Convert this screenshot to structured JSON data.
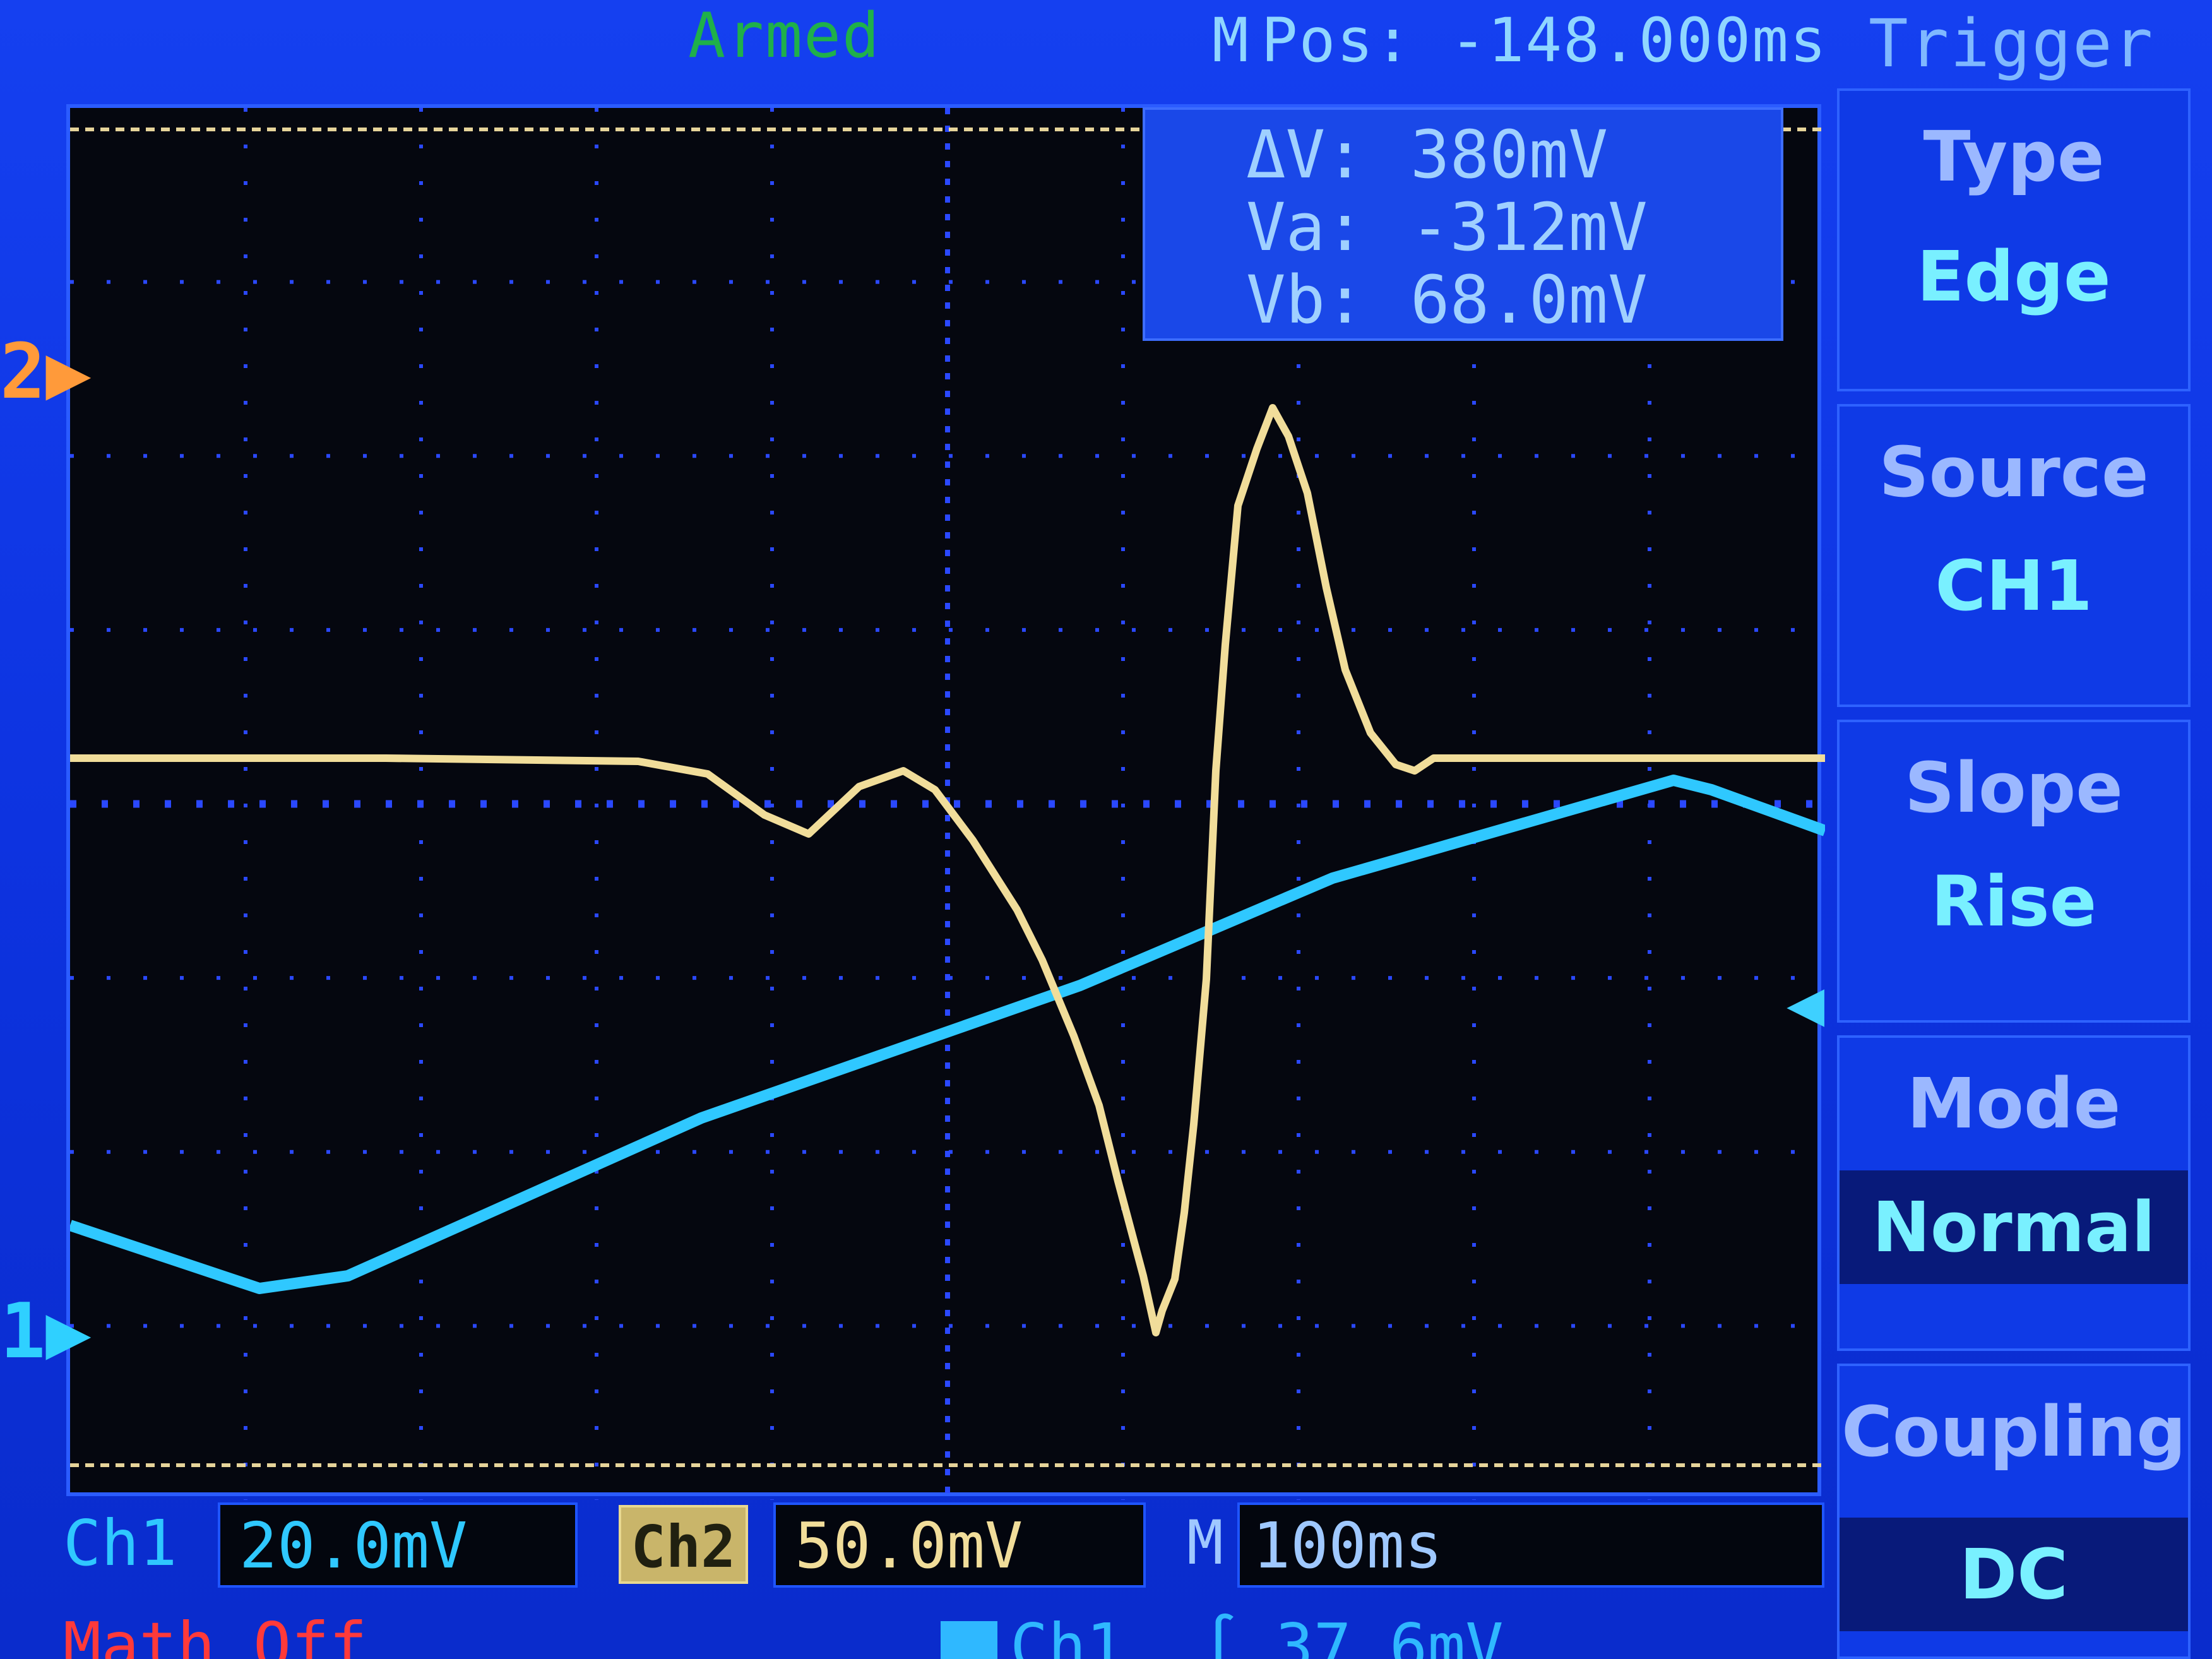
{
  "status": {
    "armed": "Armed",
    "hpos_prefix": "M",
    "hpos": "Pos: -148.000ms",
    "trigger": "Trigger"
  },
  "measure": {
    "dv_label": "ΔV:",
    "dv_value": "380mV",
    "va_label": "Va:",
    "va_value": "-312mV",
    "vb_label": "Vb:",
    "vb_value": "68.0mV"
  },
  "markers": {
    "ch2": "2▶",
    "ch1": "1▶",
    "trig_level": "◀"
  },
  "menu": {
    "type_label": "Type",
    "type_value": "Edge",
    "source_label": "Source",
    "source_value": "CH1",
    "slope_label": "Slope",
    "slope_value": "Rise",
    "mode_label": "Mode",
    "mode_value": "Normal",
    "coupling_label": "Coupling",
    "coupling_value": "DC"
  },
  "bottom": {
    "ch1_label": "Ch1",
    "ch1_scale": "20.0mV",
    "ch2_label": "Ch2",
    "ch2_scale": "50.0mV",
    "m_label": "M",
    "timebase": "100ms",
    "math": "Math Off",
    "trig_source": "Ch1",
    "trig_level": "∫ 37.6mV"
  },
  "colors": {
    "ch1": "#2fc8ff",
    "ch2": "#f1dd9a",
    "background": "#0b2fd8",
    "plot": "#05070f"
  }
}
